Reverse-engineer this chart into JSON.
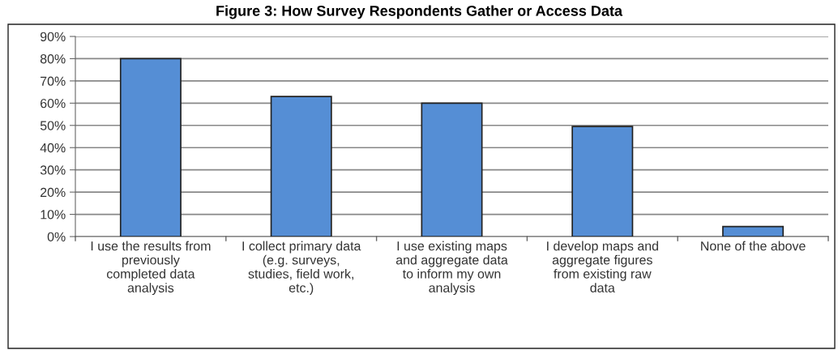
{
  "chart_data": {
    "type": "bar",
    "title": "Figure 3: How Survey Respondents Gather or Access Data",
    "categories": [
      "I use the results from\npreviously\ncompleted data\nanalysis",
      "I collect primary data\n(e.g. surveys,\nstudies, field work,\netc.)",
      "I use existing maps\nand aggregate data\nto inform my own\nanalysis",
      "I develop maps and\naggregate figures\nfrom existing raw\ndata",
      "None of the above"
    ],
    "values": [
      80,
      63,
      60,
      49.5,
      4.5
    ],
    "color": "#558ed5",
    "ylim": [
      0,
      90
    ],
    "yticks": [
      {
        "value": 0,
        "label": "0%"
      },
      {
        "value": 10,
        "label": "10%"
      },
      {
        "value": 20,
        "label": "20%"
      },
      {
        "value": 30,
        "label": "30%"
      },
      {
        "value": 40,
        "label": "40%"
      },
      {
        "value": 50,
        "label": "50%"
      },
      {
        "value": 60,
        "label": "60%"
      },
      {
        "value": 70,
        "label": "70%"
      },
      {
        "value": 80,
        "label": "80%"
      },
      {
        "value": 90,
        "label": "90%"
      }
    ],
    "grid": "y"
  }
}
